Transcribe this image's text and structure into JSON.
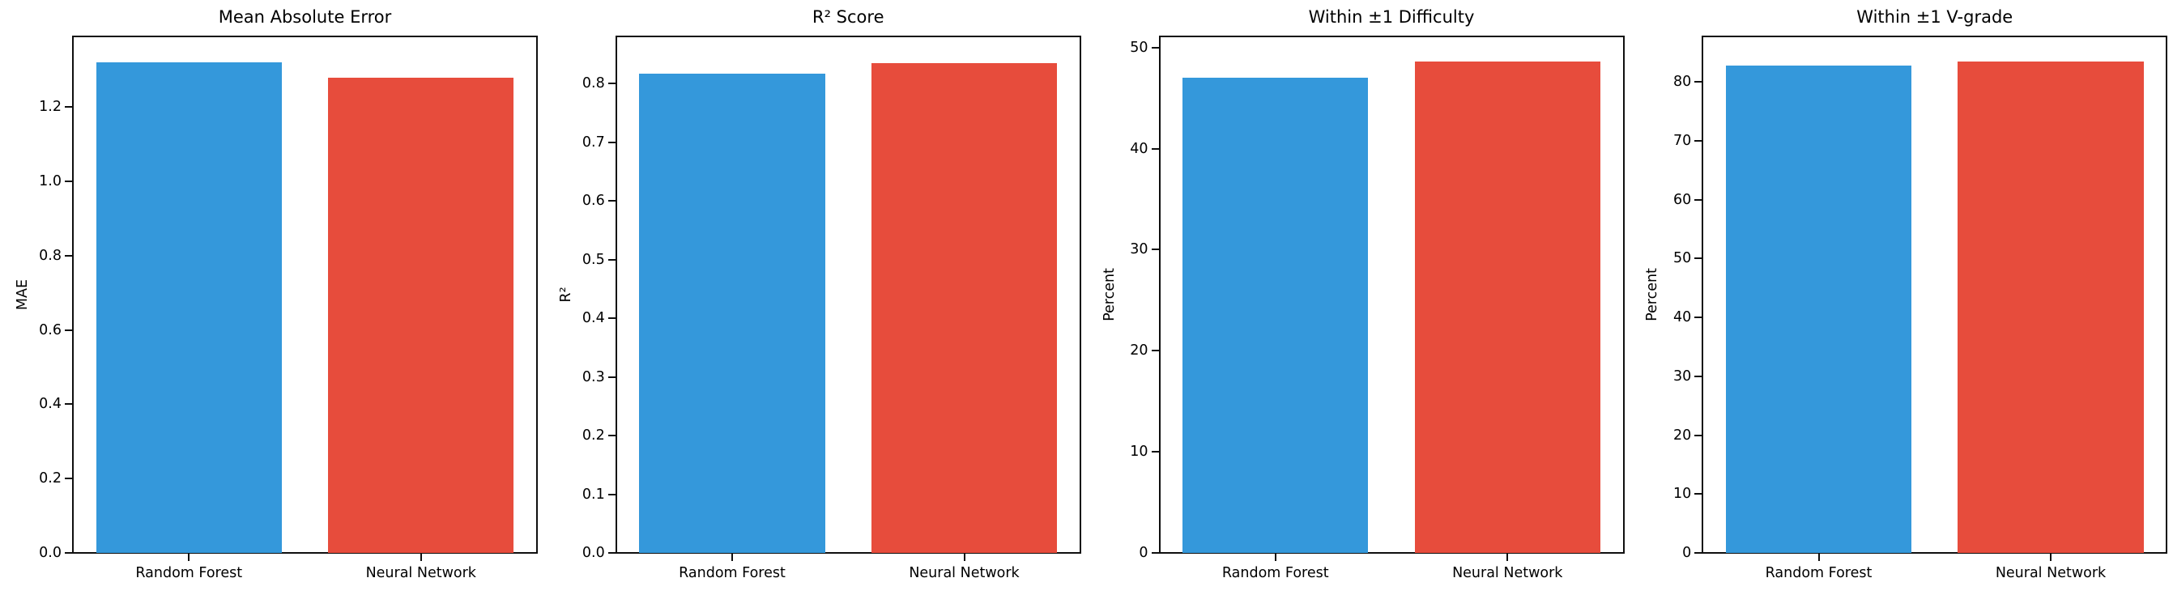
{
  "figure": {
    "background": "#ffffff",
    "spine_color": "#0f0f0f",
    "text_color": "#000000"
  },
  "colors": {
    "random_forest": "#3498db",
    "neural_network": "#e74c3c"
  },
  "chart_data": [
    {
      "type": "bar",
      "title": "Mean Absolute Error",
      "ylabel": "MAE",
      "xlabel": "",
      "categories": [
        "Random Forest",
        "Neural Network"
      ],
      "values": [
        1.32,
        1.28
      ],
      "yticks": [
        "0.0",
        "0.2",
        "0.4",
        "0.6",
        "0.8",
        "1.0",
        "1.2"
      ],
      "ylim": [
        0,
        1.39
      ],
      "grid": false,
      "legend": "none"
    },
    {
      "type": "bar",
      "title": "R² Score",
      "ylabel": "R²",
      "xlabel": "",
      "categories": [
        "Random Forest",
        "Neural Network"
      ],
      "values": [
        0.816,
        0.835
      ],
      "yticks": [
        "0.0",
        "0.1",
        "0.2",
        "0.3",
        "0.4",
        "0.5",
        "0.6",
        "0.7",
        "0.8"
      ],
      "ylim": [
        0,
        0.88
      ],
      "grid": false,
      "legend": "none"
    },
    {
      "type": "bar",
      "title": "Within ±1 Difficulty",
      "ylabel": "Percent",
      "xlabel": "",
      "categories": [
        "Random Forest",
        "Neural Network"
      ],
      "values": [
        47.0,
        48.6
      ],
      "yticks": [
        "0",
        "10",
        "20",
        "30",
        "40",
        "50"
      ],
      "ylim": [
        0,
        51.1
      ],
      "grid": false,
      "legend": "none"
    },
    {
      "type": "bar",
      "title": "Within ±1 V-grade",
      "ylabel": "Percent",
      "xlabel": "",
      "categories": [
        "Random Forest",
        "Neural Network"
      ],
      "values": [
        82.8,
        83.5
      ],
      "yticks": [
        "0",
        "10",
        "20",
        "30",
        "40",
        "50",
        "60",
        "70",
        "80"
      ],
      "ylim": [
        0,
        87.7
      ],
      "grid": false,
      "legend": "none"
    }
  ]
}
